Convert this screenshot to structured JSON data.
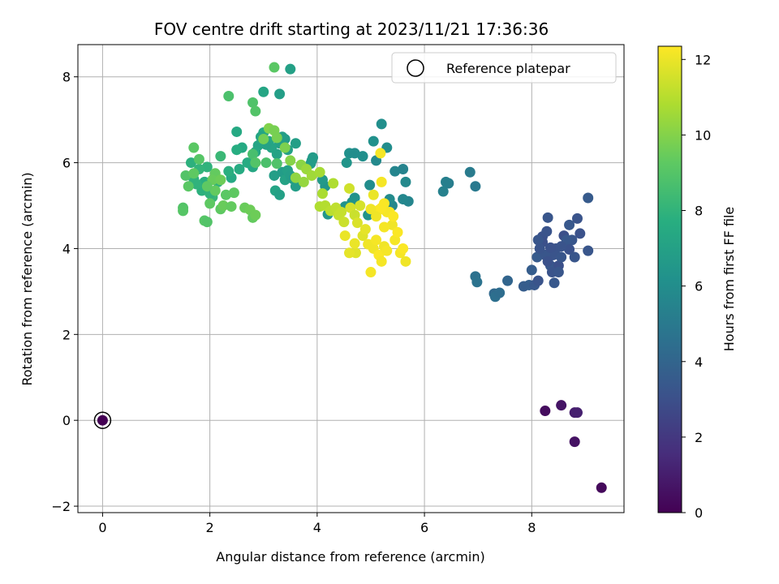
{
  "chart_data": {
    "type": "scatter",
    "title": "FOV centre drift starting at 2023/11/21 17:36:36",
    "xlabel": "Angular distance from reference (arcmin)",
    "ylabel": "Rotation from reference (arcmin)",
    "xlim": [
      -0.46,
      9.72
    ],
    "ylim": [
      -2.15,
      8.75
    ],
    "xticks": [
      0,
      2,
      4,
      6,
      8
    ],
    "yticks": [
      -2,
      0,
      2,
      4,
      6,
      8
    ],
    "grid": true,
    "legend": {
      "placement": "upper right",
      "entries": [
        "Reference platepar"
      ]
    },
    "reference_point": {
      "x": 0,
      "y": 0,
      "hours": 0
    },
    "colorbar": {
      "label": "Hours from first FF file",
      "range": [
        0,
        12.35
      ],
      "ticks": [
        0,
        2,
        4,
        6,
        8,
        10,
        12
      ],
      "colormap": "viridis"
    },
    "series": [
      {
        "points": [
          [
            8.25,
            0.22,
            0.4
          ],
          [
            8.55,
            0.35,
            0.7
          ],
          [
            8.8,
            0.18,
            1.0
          ],
          [
            8.85,
            0.18,
            1.1
          ],
          [
            8.8,
            -0.5,
            0.6
          ],
          [
            9.3,
            -1.57,
            0.3
          ],
          [
            8.2,
            4.28,
            3.1
          ],
          [
            8.3,
            4.72,
            3.3
          ],
          [
            8.45,
            4.0,
            3.2
          ],
          [
            8.6,
            4.3,
            3.0
          ],
          [
            8.7,
            4.55,
            3.4
          ],
          [
            8.75,
            4.2,
            3.3
          ],
          [
            8.85,
            4.7,
            3.2
          ],
          [
            8.9,
            4.35,
            3.1
          ],
          [
            9.05,
            5.18,
            3.5
          ],
          [
            9.05,
            3.95,
            3.3
          ],
          [
            8.35,
            3.6,
            3.4
          ],
          [
            8.4,
            3.85,
            3.2
          ],
          [
            8.5,
            3.6,
            3.0
          ],
          [
            8.55,
            3.8,
            3.3
          ],
          [
            8.65,
            4.2,
            3.4
          ],
          [
            8.7,
            3.98,
            3.1
          ],
          [
            8.8,
            3.8,
            3.3
          ],
          [
            8.1,
            3.8,
            3.5
          ],
          [
            8.0,
            3.5,
            3.6
          ],
          [
            7.95,
            3.15,
            3.7
          ],
          [
            8.05,
            3.15,
            3.4
          ],
          [
            8.12,
            3.25,
            3.2
          ],
          [
            8.2,
            4.15,
            3.0
          ],
          [
            8.25,
            3.85,
            3.3
          ],
          [
            8.3,
            3.7,
            3.1
          ],
          [
            8.38,
            3.45,
            3.2
          ],
          [
            8.42,
            3.2,
            3.4
          ],
          [
            8.5,
            3.45,
            3.3
          ],
          [
            8.55,
            4.05,
            3.2
          ],
          [
            7.85,
            3.12,
            3.6
          ],
          [
            8.12,
            4.2,
            3.3
          ],
          [
            8.28,
            4.4,
            3.2
          ],
          [
            8.35,
            4.02,
            3.1
          ],
          [
            8.15,
            4.0,
            3.2
          ],
          [
            7.55,
            3.25,
            4.0
          ],
          [
            7.3,
            2.95,
            4.2
          ],
          [
            7.32,
            2.88,
            4.5
          ],
          [
            7.4,
            2.97,
            4.4
          ],
          [
            6.95,
            3.35,
            4.6
          ],
          [
            6.98,
            3.22,
            4.7
          ],
          [
            6.95,
            5.45,
            5.0
          ],
          [
            6.85,
            5.78,
            5.1
          ],
          [
            6.45,
            5.52,
            5.2
          ],
          [
            6.4,
            5.55,
            5.3
          ],
          [
            6.35,
            5.33,
            5.4
          ],
          [
            5.7,
            5.1,
            5.6
          ],
          [
            5.6,
            5.15,
            5.7
          ],
          [
            5.65,
            5.55,
            5.8
          ],
          [
            5.6,
            5.85,
            5.5
          ],
          [
            5.45,
            5.8,
            5.6
          ],
          [
            5.4,
            5.0,
            5.7
          ],
          [
            5.35,
            5.15,
            5.9
          ],
          [
            5.3,
            6.35,
            6.0
          ],
          [
            5.2,
            6.9,
            6.1
          ],
          [
            5.1,
            6.05,
            5.8
          ],
          [
            4.98,
            5.48,
            6.0
          ],
          [
            5.05,
            6.5,
            6.2
          ],
          [
            4.95,
            4.78,
            6.3
          ],
          [
            4.85,
            6.15,
            6.1
          ],
          [
            4.7,
            5.18,
            6.2
          ],
          [
            4.65,
            5.08,
            6.3
          ],
          [
            4.6,
            6.22,
            6.2
          ],
          [
            4.55,
            6.0,
            6.4
          ],
          [
            4.52,
            4.98,
            6.3
          ],
          [
            4.7,
            6.22,
            6.0
          ],
          [
            4.2,
            4.8,
            6.5
          ],
          [
            4.15,
            5.45,
            6.4
          ],
          [
            4.1,
            5.6,
            6.6
          ],
          [
            3.9,
            6.05,
            6.6
          ],
          [
            3.92,
            6.12,
            6.7
          ],
          [
            3.88,
            5.98,
            6.8
          ],
          [
            3.6,
            6.45,
            6.9
          ],
          [
            3.45,
            6.3,
            7.0
          ],
          [
            3.4,
            6.55,
            6.8
          ],
          [
            3.35,
            6.6,
            6.9
          ],
          [
            3.3,
            6.45,
            7.0
          ],
          [
            3.25,
            6.2,
            7.1
          ],
          [
            3.2,
            5.7,
            6.9
          ],
          [
            3.22,
            5.35,
            7.2
          ],
          [
            3.3,
            5.25,
            7.0
          ],
          [
            3.35,
            5.78,
            6.8
          ],
          [
            3.4,
            5.6,
            7.1
          ],
          [
            3.45,
            5.82,
            7.0
          ],
          [
            3.5,
            5.7,
            6.9
          ],
          [
            3.55,
            5.62,
            6.8
          ],
          [
            3.6,
            5.45,
            6.9
          ],
          [
            3.3,
            7.6,
            6.9
          ],
          [
            3.5,
            8.18,
            7.0
          ],
          [
            3.15,
            6.35,
            7.2
          ],
          [
            3.1,
            6.5,
            7.3
          ],
          [
            3.05,
            6.42,
            7.1
          ],
          [
            3.0,
            7.65,
            7.3
          ],
          [
            2.9,
            6.4,
            7.2
          ],
          [
            2.85,
            6.25,
            7.4
          ],
          [
            3.0,
            6.7,
            7.5
          ],
          [
            2.95,
            6.6,
            7.3
          ],
          [
            2.8,
            5.9,
            7.4
          ],
          [
            2.6,
            6.35,
            7.5
          ],
          [
            2.7,
            6.0,
            7.6
          ],
          [
            2.5,
            6.3,
            7.7
          ],
          [
            2.5,
            6.72,
            7.5
          ],
          [
            2.55,
            5.85,
            7.6
          ],
          [
            2.4,
            5.65,
            7.5
          ],
          [
            2.35,
            5.8,
            7.8
          ],
          [
            2.15,
            5.55,
            7.9
          ],
          [
            1.95,
            5.9,
            8.0
          ],
          [
            1.9,
            5.55,
            7.8
          ],
          [
            1.85,
            5.35,
            7.9
          ],
          [
            1.7,
            5.62,
            8.0
          ],
          [
            1.65,
            6.0,
            7.9
          ],
          [
            1.75,
            5.5,
            8.0
          ],
          [
            1.8,
            5.85,
            8.1
          ],
          [
            2.05,
            5.2,
            8.2
          ],
          [
            2.0,
            5.28,
            8.0
          ],
          [
            2.2,
            6.15,
            8.3
          ],
          [
            2.35,
            7.55,
            8.8
          ],
          [
            2.8,
            7.4,
            8.9
          ],
          [
            3.2,
            8.22,
            9.2
          ],
          [
            2.85,
            7.2,
            9.0
          ],
          [
            2.8,
            6.2,
            8.7
          ],
          [
            3.05,
            6.0,
            8.8
          ],
          [
            3.25,
            5.98,
            8.9
          ],
          [
            2.85,
            6.0,
            9.0
          ],
          [
            1.8,
            6.08,
            9.1
          ],
          [
            1.7,
            6.35,
            9.2
          ],
          [
            1.5,
            4.95,
            9.0
          ],
          [
            1.5,
            4.88,
            9.1
          ],
          [
            1.55,
            5.7,
            9.0
          ],
          [
            1.6,
            5.45,
            9.2
          ],
          [
            1.7,
            5.75,
            9.3
          ],
          [
            1.9,
            4.65,
            9.1
          ],
          [
            1.95,
            4.62,
            9.0
          ],
          [
            2.0,
            5.05,
            9.3
          ],
          [
            2.1,
            5.35,
            9.4
          ],
          [
            2.2,
            4.92,
            9.3
          ],
          [
            2.25,
            5.0,
            9.5
          ],
          [
            2.3,
            5.25,
            9.2
          ],
          [
            2.4,
            4.98,
            9.4
          ],
          [
            2.45,
            5.3,
            9.3
          ],
          [
            2.65,
            4.95,
            9.5
          ],
          [
            2.75,
            4.9,
            9.6
          ],
          [
            2.8,
            4.72,
            9.4
          ],
          [
            2.85,
            4.78,
            9.6
          ],
          [
            2.1,
            5.75,
            9.4
          ],
          [
            2.05,
            5.6,
            9.5
          ],
          [
            1.95,
            5.45,
            9.3
          ],
          [
            2.2,
            5.6,
            9.6
          ],
          [
            3.0,
            6.55,
            9.7
          ],
          [
            3.25,
            6.58,
            9.8
          ],
          [
            3.4,
            6.35,
            9.9
          ],
          [
            3.1,
            6.8,
            10.0
          ],
          [
            3.2,
            6.75,
            9.8
          ],
          [
            3.5,
            6.05,
            10.1
          ],
          [
            3.6,
            5.65,
            10.3
          ],
          [
            3.7,
            5.95,
            10.2
          ],
          [
            3.75,
            5.55,
            10.4
          ],
          [
            3.8,
            5.85,
            10.5
          ],
          [
            3.9,
            5.7,
            10.6
          ],
          [
            4.05,
            5.78,
            10.7
          ],
          [
            4.1,
            5.28,
            10.8
          ],
          [
            4.05,
            4.98,
            10.9
          ],
          [
            4.15,
            5.0,
            11.0
          ],
          [
            4.25,
            4.88,
            11.1
          ],
          [
            4.3,
            5.52,
            10.9
          ],
          [
            4.35,
            4.95,
            11.2
          ],
          [
            4.4,
            4.78,
            11.3
          ],
          [
            4.5,
            4.62,
            11.4
          ],
          [
            4.45,
            4.85,
            11.3
          ],
          [
            4.6,
            5.4,
            11.5
          ],
          [
            4.62,
            4.95,
            11.6
          ],
          [
            4.7,
            4.78,
            11.4
          ],
          [
            4.75,
            4.6,
            11.7
          ],
          [
            4.8,
            5.0,
            11.6
          ],
          [
            4.85,
            4.3,
            11.8
          ],
          [
            4.9,
            4.45,
            11.9
          ],
          [
            4.72,
            3.9,
            11.8
          ],
          [
            4.6,
            3.9,
            11.9
          ],
          [
            4.52,
            4.3,
            12.0
          ],
          [
            4.7,
            4.12,
            12.0
          ],
          [
            4.95,
            4.1,
            12.1
          ],
          [
            5.0,
            3.45,
            12.2
          ],
          [
            5.05,
            4.0,
            12.1
          ],
          [
            5.1,
            4.2,
            12.2
          ],
          [
            5.15,
            3.85,
            12.3
          ],
          [
            5.2,
            3.7,
            12.2
          ],
          [
            5.25,
            4.05,
            12.1
          ],
          [
            5.3,
            3.95,
            12.2
          ],
          [
            5.35,
            4.85,
            12.3
          ],
          [
            5.4,
            4.55,
            12.1
          ],
          [
            5.45,
            4.2,
            12.2
          ],
          [
            5.5,
            4.38,
            12.3
          ],
          [
            5.55,
            3.9,
            12.2
          ],
          [
            5.6,
            4.0,
            12.3
          ],
          [
            5.65,
            3.7,
            12.1
          ],
          [
            5.15,
            4.9,
            12.3
          ],
          [
            5.2,
            5.55,
            12.2
          ],
          [
            5.25,
            5.05,
            12.3
          ],
          [
            5.3,
            4.85,
            12.2
          ],
          [
            5.05,
            5.25,
            12.0
          ],
          [
            5.1,
            4.75,
            12.1
          ],
          [
            5.2,
            4.95,
            12.3
          ],
          [
            5.18,
            6.22,
            12.2
          ],
          [
            5.25,
            4.5,
            12.2
          ],
          [
            5.42,
            4.75,
            12.3
          ],
          [
            5.0,
            4.92,
            12.1
          ]
        ]
      }
    ]
  }
}
